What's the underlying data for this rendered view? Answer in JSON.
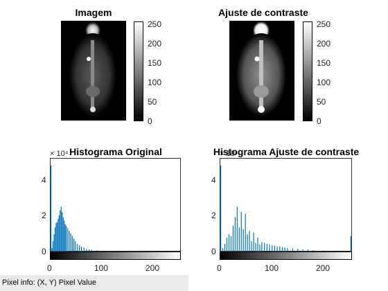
{
  "panels": {
    "original_image_title": "Imagem",
    "contrast_image_title": "Ajuste de contraste",
    "hist_original_title": "Histograma Original",
    "hist_contrast_title": "Histograma Ajuste de contraste"
  },
  "colorbar_ticks": [
    "250",
    "200",
    "150",
    "100",
    "50",
    "0"
  ],
  "hist_y_ticks": [
    "4",
    "2",
    "0"
  ],
  "hist_x_ticks": [
    "0",
    "100",
    "200"
  ],
  "hist_exponent": "× 10⁴",
  "status": {
    "pixel_info": "Pixel info: (X, Y)  Pixel Value"
  },
  "chart_data": [
    {
      "type": "bar",
      "title": "Histograma Original",
      "xlim": [
        0,
        255
      ],
      "ylim": [
        0,
        5.2
      ],
      "y_exponent": 4,
      "color": "#0072BD",
      "x": [
        0,
        2,
        4,
        6,
        8,
        10,
        12,
        14,
        16,
        18,
        20,
        22,
        24,
        26,
        28,
        30,
        33,
        36,
        39,
        42,
        45,
        48,
        52,
        56,
        60,
        65,
        70,
        75,
        80,
        90,
        100,
        110,
        120,
        140,
        160,
        180,
        200,
        230,
        255
      ],
      "values": [
        5.0,
        0.2,
        0.6,
        1.0,
        1.4,
        1.65,
        1.7,
        1.9,
        2.1,
        2.4,
        2.6,
        2.3,
        2.0,
        1.8,
        1.6,
        1.5,
        1.35,
        1.2,
        1.05,
        0.9,
        0.75,
        0.6,
        0.45,
        0.35,
        0.28,
        0.22,
        0.15,
        0.12,
        0.1,
        0.07,
        0.05,
        0.03,
        0.02,
        0.02,
        0.02,
        0.05,
        0.02,
        0.02,
        0.02
      ]
    },
    {
      "type": "bar",
      "title": "Histograma Ajuste de contraste",
      "xlim": [
        0,
        255
      ],
      "ylim": [
        0,
        5.2
      ],
      "y_exponent": 4,
      "color": "#0072BD",
      "x": [
        0,
        4,
        8,
        12,
        16,
        20,
        24,
        28,
        32,
        36,
        40,
        44,
        48,
        52,
        56,
        60,
        64,
        68,
        72,
        76,
        80,
        85,
        90,
        95,
        100,
        105,
        110,
        115,
        120,
        125,
        130,
        140,
        150,
        160,
        170,
        180,
        200,
        220,
        240,
        255
      ],
      "values": [
        5.0,
        0.2,
        0.45,
        0.8,
        1.0,
        0.9,
        1.5,
        2.0,
        2.6,
        1.4,
        2.3,
        1.3,
        2.2,
        1.0,
        1.2,
        0.6,
        1.1,
        0.5,
        0.8,
        0.4,
        0.55,
        0.5,
        0.45,
        0.4,
        0.35,
        0.35,
        0.3,
        0.3,
        0.25,
        0.22,
        0.2,
        0.18,
        0.15,
        0.12,
        0.1,
        0.08,
        0.06,
        0.05,
        0.04,
        0.9
      ]
    }
  ]
}
